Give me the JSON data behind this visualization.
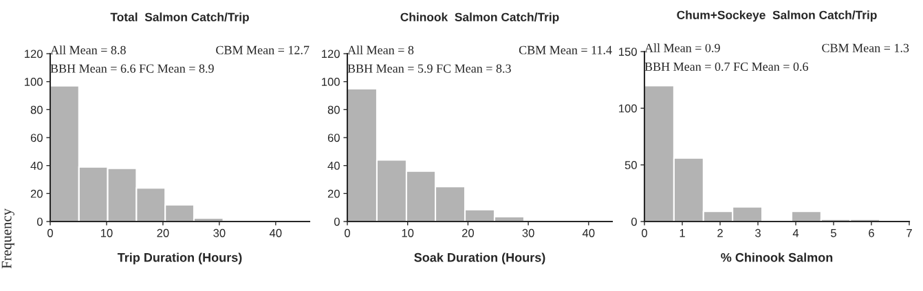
{
  "chart_data": [
    {
      "type": "histogram",
      "title": "Total  Salmon Catch/Trip",
      "xlabel": "Trip Duration (Hours)",
      "ylabel": "Frequency",
      "color": "#b3b3b3",
      "bins": [
        0,
        5.1,
        10.2,
        15.3,
        20.4,
        25.5,
        30.7,
        40.9,
        46
      ],
      "values": [
        97,
        39,
        38,
        24,
        12,
        2.5,
        null,
        0.5
      ],
      "xlim": [
        0,
        46
      ],
      "xticks": [
        0,
        10,
        20,
        30,
        40
      ],
      "ylim": [
        0,
        120
      ],
      "yticks": [
        0,
        20,
        40,
        60,
        80,
        100,
        120
      ],
      "annotations": [
        "All Mean = 8.8",
        "CBM Mean = 12.7",
        "BBH Mean = 6.6 FC Mean = 8.9"
      ]
    },
    {
      "type": "histogram",
      "title": "Chinook  Salmon Catch/Trip",
      "xlabel": "Soak Duration (Hours)",
      "color": "#b3b3b3",
      "bins": [
        0,
        4.9,
        9.8,
        14.6,
        19.5,
        24.4,
        29.3,
        34.1,
        39
      ],
      "values": [
        95,
        44,
        36,
        25,
        8.5,
        3.5,
        null,
        0.5
      ],
      "xlim": [
        0,
        43.9
      ],
      "xticks": [
        0,
        10,
        20,
        30,
        40
      ],
      "ylim": [
        0,
        120
      ],
      "yticks": [
        0,
        20,
        40,
        60,
        80,
        100,
        120
      ],
      "annotations": [
        "All Mean = 8",
        "CBM Mean = 11.4",
        "BBH Mean = 5.9 FC Mean = 8.3"
      ]
    },
    {
      "type": "histogram",
      "title": "Chum+Sockeye  Salmon Catch/Trip",
      "xlabel": "% Chinook Salmon",
      "color": "#b3b3b3",
      "bins": [
        0,
        0.78,
        1.56,
        2.33,
        3.11,
        3.89,
        4.67,
        5.44,
        6.22
      ],
      "values": [
        120,
        56,
        9,
        13,
        0,
        9,
        2,
        2
      ],
      "xlim": [
        0,
        7
      ],
      "xticks": [
        0,
        1,
        2,
        3,
        4,
        5,
        6,
        7
      ],
      "ylim": [
        0,
        150
      ],
      "yticks": [
        0,
        50,
        100,
        150
      ],
      "annotations": [
        "All Mean = 0.9",
        "CBM Mean = 1.3",
        "BBH Mean = 0.7 FC Mean = 0.6"
      ]
    }
  ]
}
